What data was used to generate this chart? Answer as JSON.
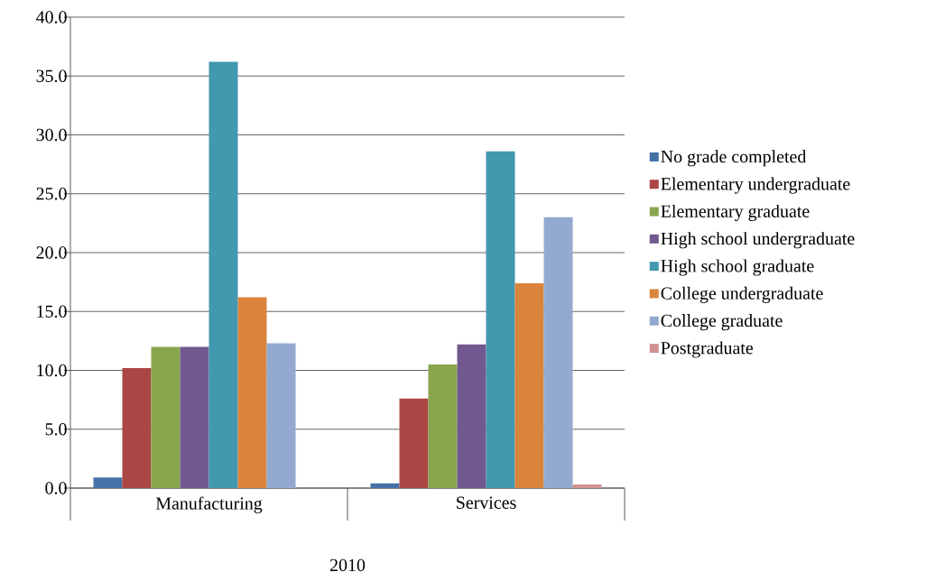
{
  "chart_data": {
    "type": "bar",
    "categories": [
      "Manufacturing",
      "Services"
    ],
    "xlabel": "2010",
    "series": [
      {
        "name": "No grade completed",
        "color": "#4572a7",
        "values": [
          0.9,
          0.4
        ]
      },
      {
        "name": "Elementary undergraduate",
        "color": "#aa4643",
        "values": [
          10.2,
          7.6
        ]
      },
      {
        "name": "Elementary graduate",
        "color": "#89a54e",
        "values": [
          12.0,
          10.5
        ]
      },
      {
        "name": "High school undergraduate",
        "color": "#71588f",
        "values": [
          12.0,
          12.2
        ]
      },
      {
        "name": "High school graduate",
        "color": "#4198af",
        "values": [
          36.2,
          28.6
        ]
      },
      {
        "name": "College undergraduate",
        "color": "#db843d",
        "values": [
          16.2,
          17.4
        ]
      },
      {
        "name": "College graduate",
        "color": "#93a9cf",
        "values": [
          12.3,
          23.0
        ]
      },
      {
        "name": "Postgraduate",
        "color": "#d19392",
        "values": [
          0,
          0.3
        ]
      }
    ],
    "ylim": [
      0,
      40
    ],
    "yticks": [
      {
        "value": 0,
        "label": "0.0"
      },
      {
        "value": 5,
        "label": "5.0"
      },
      {
        "value": 10,
        "label": "10.0"
      },
      {
        "value": 15,
        "label": "15.0"
      },
      {
        "value": 20,
        "label": "20.0"
      },
      {
        "value": 25,
        "label": "25.0"
      },
      {
        "value": 30,
        "label": "30.0"
      },
      {
        "value": 35,
        "label": "35.0"
      },
      {
        "value": 40,
        "label": "40.0"
      }
    ],
    "grid": "y",
    "legend": "right"
  }
}
